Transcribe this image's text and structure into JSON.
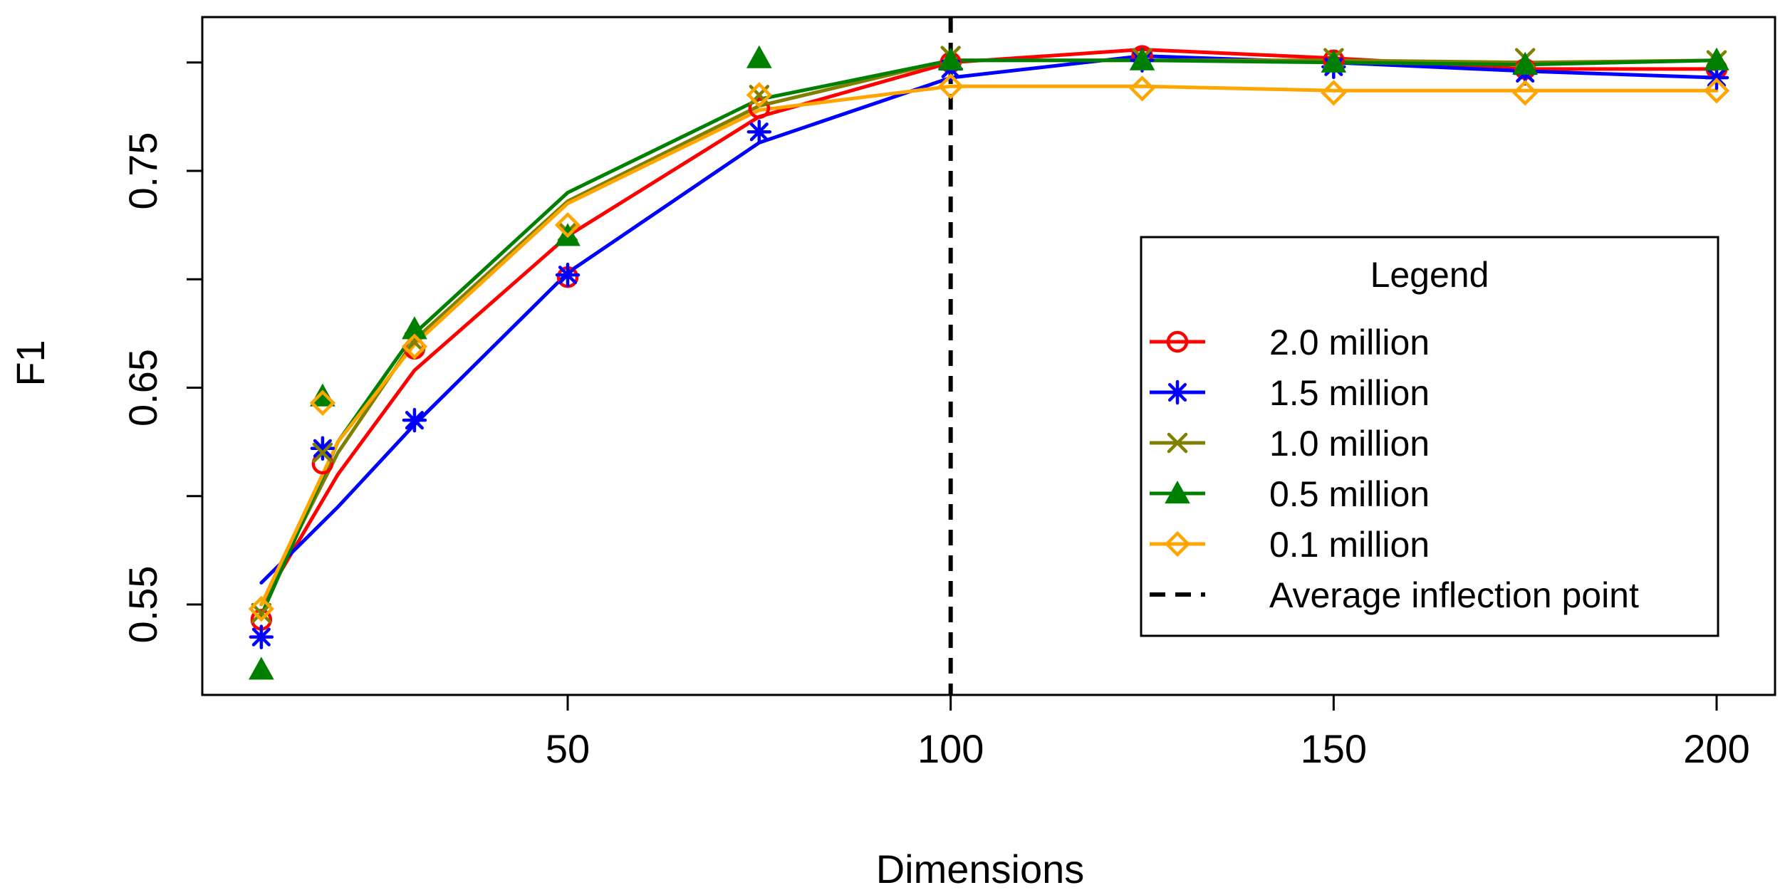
{
  "chart_data": {
    "type": "line",
    "title": "",
    "xlabel": "Dimensions",
    "ylabel": "F1",
    "xlim": [
      0,
      210
    ],
    "ylim": [
      0.51,
      0.81
    ],
    "xticks": [
      50,
      100,
      150,
      200
    ],
    "yticks_labeled": [
      0.55,
      0.65,
      0.75
    ],
    "yticks_all": [
      0.55,
      0.6,
      0.65,
      0.7,
      0.75,
      0.8
    ],
    "grid": false,
    "series": [
      {
        "name": "2.0 million",
        "color": "#ff0000",
        "marker": "circle",
        "line_x": [
          10,
          20,
          30,
          50,
          75,
          100,
          125,
          150,
          175,
          200
        ],
        "line_y": [
          0.55,
          0.61,
          0.658,
          0.72,
          0.775,
          0.8,
          0.806,
          0.802,
          0.797,
          0.797
        ],
        "marker_x": [
          10,
          18,
          30,
          50,
          75,
          100,
          125,
          150,
          175,
          200
        ],
        "marker_y": [
          0.543,
          0.615,
          0.668,
          0.701,
          0.779,
          0.8,
          0.803,
          0.801,
          0.797,
          0.797
        ]
      },
      {
        "name": "1.5 million",
        "color": "#0000ff",
        "marker": "asterisk",
        "line_x": [
          10,
          20,
          30,
          50,
          75,
          100,
          125,
          150,
          175,
          200
        ],
        "line_y": [
          0.56,
          0.595,
          0.633,
          0.703,
          0.763,
          0.793,
          0.803,
          0.8,
          0.796,
          0.793
        ],
        "marker_x": [
          10,
          18,
          30,
          50,
          75,
          100,
          125,
          150,
          175,
          200
        ],
        "marker_y": [
          0.535,
          0.622,
          0.635,
          0.702,
          0.768,
          0.797,
          0.801,
          0.798,
          0.795,
          0.793
        ]
      },
      {
        "name": "1.0 million",
        "color": "#808000",
        "marker": "x",
        "line_x": [
          10,
          20,
          30,
          50,
          75,
          100,
          125,
          150,
          175,
          200
        ],
        "line_y": [
          0.55,
          0.62,
          0.672,
          0.736,
          0.78,
          0.801,
          0.801,
          0.801,
          0.8,
          0.801
        ],
        "marker_x": [
          10,
          18,
          30,
          50,
          75,
          100,
          125,
          150,
          175,
          200
        ],
        "marker_y": [
          0.546,
          0.62,
          0.671,
          0.722,
          0.785,
          0.803,
          0.802,
          0.802,
          0.802,
          0.801
        ]
      },
      {
        "name": "0.5 million",
        "color": "#008000",
        "marker": "triangle",
        "line_x": [
          10,
          20,
          30,
          50,
          75,
          100,
          125,
          150,
          175,
          200
        ],
        "line_y": [
          0.545,
          0.625,
          0.675,
          0.74,
          0.783,
          0.801,
          0.801,
          0.8,
          0.799,
          0.801
        ],
        "marker_x": [
          10,
          18,
          30,
          50,
          75,
          100,
          125,
          150,
          175,
          200
        ],
        "marker_y": [
          0.52,
          0.646,
          0.677,
          0.72,
          0.802,
          0.801,
          0.801,
          0.8,
          0.799,
          0.801
        ]
      },
      {
        "name": "0.1 million",
        "color": "#ffa500",
        "marker": "diamond",
        "line_x": [
          10,
          20,
          30,
          50,
          75,
          100,
          125,
          150,
          175,
          200
        ],
        "line_y": [
          0.55,
          0.625,
          0.67,
          0.735,
          0.778,
          0.789,
          0.789,
          0.787,
          0.787,
          0.787
        ],
        "marker_x": [
          10,
          18,
          30,
          50,
          75,
          100,
          125,
          150,
          175,
          200
        ],
        "marker_y": [
          0.548,
          0.643,
          0.669,
          0.725,
          0.785,
          0.789,
          0.788,
          0.786,
          0.786,
          0.787
        ]
      }
    ],
    "reference_lines": [
      {
        "name": "Average inflection point",
        "orientation": "vertical",
        "x": 100,
        "style": "dashed",
        "color": "#000000"
      }
    ],
    "legend": {
      "title": "Legend",
      "position": "right",
      "entries": [
        "2.0 million",
        "1.5 million",
        "1.0 million",
        "0.5 million",
        "0.1 million",
        "Average inflection point"
      ]
    }
  }
}
